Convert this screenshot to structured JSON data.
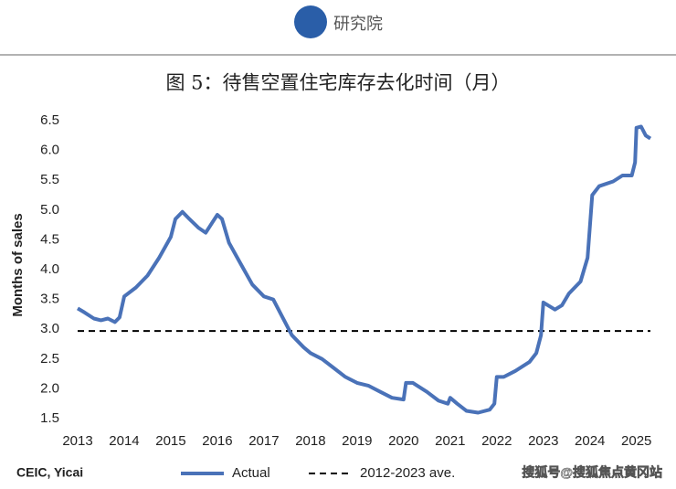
{
  "header": {
    "logo": "研究院"
  },
  "source": "CEIC, Yicai",
  "watermark": "搜狐号@搜狐焦点黄冈站",
  "chart_data": {
    "type": "line",
    "title": "图 5：待售空置住宅库存去化时间（月）",
    "y_label": "Months of sales",
    "x": [
      2013,
      2013.15,
      2013.35,
      2013.5,
      2013.65,
      2013.8,
      2013.9,
      2014,
      2014.25,
      2014.5,
      2014.75,
      2015,
      2015.1,
      2015.25,
      2015.4,
      2015.6,
      2015.75,
      2015.9,
      2016,
      2016.1,
      2016.25,
      2016.5,
      2016.75,
      2017,
      2017.2,
      2017.4,
      2017.6,
      2017.85,
      2018,
      2018.25,
      2018.5,
      2018.75,
      2019,
      2019.25,
      2019.5,
      2019.75,
      2020,
      2020.05,
      2020.2,
      2020.5,
      2020.75,
      2020.95,
      2021,
      2021.15,
      2021.35,
      2021.6,
      2021.85,
      2021.95,
      2022,
      2022.15,
      2022.4,
      2022.7,
      2022.85,
      2022.95,
      2023,
      2023.1,
      2023.25,
      2023.4,
      2023.55,
      2023.8,
      2023.95,
      2024.05,
      2024.2,
      2024.5,
      2024.7,
      2024.9,
      2024.97,
      2025,
      2025.1,
      2025.2,
      2025.3
    ],
    "series": [
      {
        "name": "Actual",
        "color": "#4a72b8",
        "values": [
          3.35,
          3.28,
          3.18,
          3.15,
          3.18,
          3.12,
          3.2,
          3.55,
          3.7,
          3.9,
          4.2,
          4.55,
          4.85,
          4.97,
          4.85,
          4.7,
          4.62,
          4.8,
          4.92,
          4.85,
          4.45,
          4.1,
          3.75,
          3.55,
          3.5,
          3.2,
          2.9,
          2.7,
          2.6,
          2.5,
          2.35,
          2.2,
          2.1,
          2.05,
          1.95,
          1.85,
          1.82,
          2.1,
          2.1,
          1.95,
          1.8,
          1.75,
          1.85,
          1.75,
          1.63,
          1.6,
          1.65,
          1.75,
          2.2,
          2.2,
          2.3,
          2.45,
          2.6,
          2.9,
          3.45,
          3.4,
          3.33,
          3.4,
          3.6,
          3.8,
          4.2,
          5.25,
          5.4,
          5.48,
          5.58,
          5.58,
          5.8,
          6.38,
          6.4,
          6.25,
          6.2
        ]
      }
    ],
    "average": {
      "name": "2012-2023 ave.",
      "value": 2.97,
      "color": "#000000"
    },
    "xlim": [
      2013,
      2025.3
    ],
    "xticks": [
      2013,
      2014,
      2015,
      2016,
      2017,
      2018,
      2019,
      2020,
      2021,
      2022,
      2023,
      2024,
      2025
    ],
    "ylim": [
      1.5,
      6.5
    ],
    "yticks": [
      1.5,
      {
        "value": 2,
        "label": "2.0"
      },
      2.5,
      {
        "value": 3,
        "label": "3.0"
      },
      3.5,
      {
        "value": 4,
        "label": "4.0"
      },
      4.5,
      {
        "value": 5,
        "label": "5.0"
      },
      5.5,
      {
        "value": 6,
        "label": "6.0"
      },
      6.5
    ],
    "grid": false
  }
}
